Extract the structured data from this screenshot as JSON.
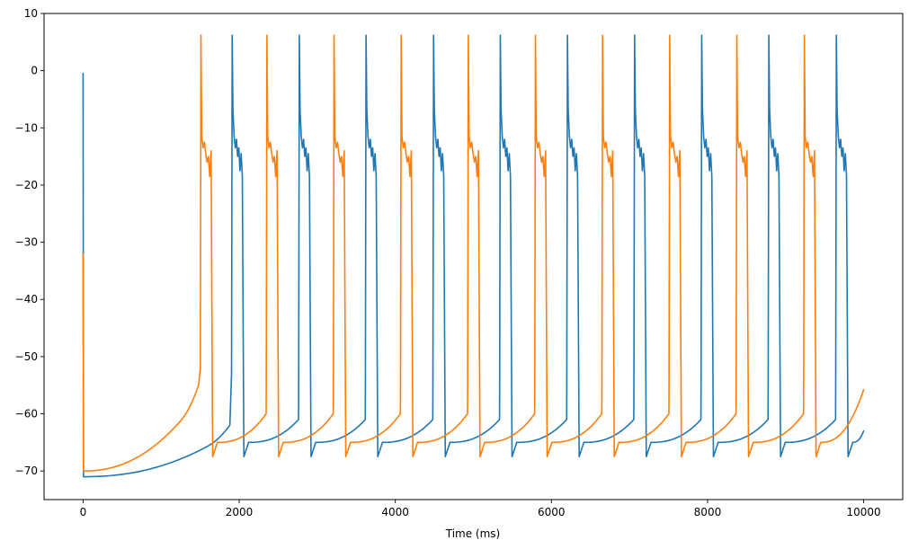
{
  "chart_data": {
    "type": "line",
    "title": "",
    "xlabel": "Time (ms)",
    "ylabel": "",
    "xlim": [
      -500,
      10500
    ],
    "ylim": [
      -75,
      10
    ],
    "xticks": [
      0,
      2000,
      4000,
      6000,
      8000,
      10000
    ],
    "yticks": [
      -70,
      -60,
      -50,
      -40,
      -30,
      -20,
      -10,
      0,
      10
    ],
    "grid": false,
    "legend": "none",
    "series": [
      {
        "color": "#1f77b4",
        "start_peak": -0.5,
        "start_trough": -71.0,
        "initial_upstroke": -62.0,
        "spike_peak": 6.2,
        "plateau": [
          -7.0,
          -11.5,
          -13.5,
          -12.0,
          -15.0,
          -13.5,
          -17.5,
          -14.5,
          -18.5
        ],
        "trough": -67.5,
        "recovery": -65.0,
        "pre_spike_level": -61.0,
        "end_value": -63.0,
        "spike_times": [
          1910,
          2770,
          3625,
          4490,
          5345,
          6205,
          7065,
          7925,
          8785,
          9650
        ]
      },
      {
        "color": "#ff7f0e",
        "start_peak": -32.0,
        "start_trough": -70.0,
        "initial_upstroke": -55.0,
        "spike_peak": 6.2,
        "plateau": [
          -11.5,
          -13.5,
          -12.5,
          -14.5,
          -16.0,
          -15.0,
          -18.5,
          -14.0
        ],
        "trough": -67.5,
        "recovery": -65.0,
        "pre_spike_level": -60.0,
        "end_value": -55.8,
        "spike_times": [
          1510,
          2355,
          3215,
          4075,
          4935,
          5795,
          6655,
          7515,
          8375,
          9240
        ]
      }
    ]
  }
}
